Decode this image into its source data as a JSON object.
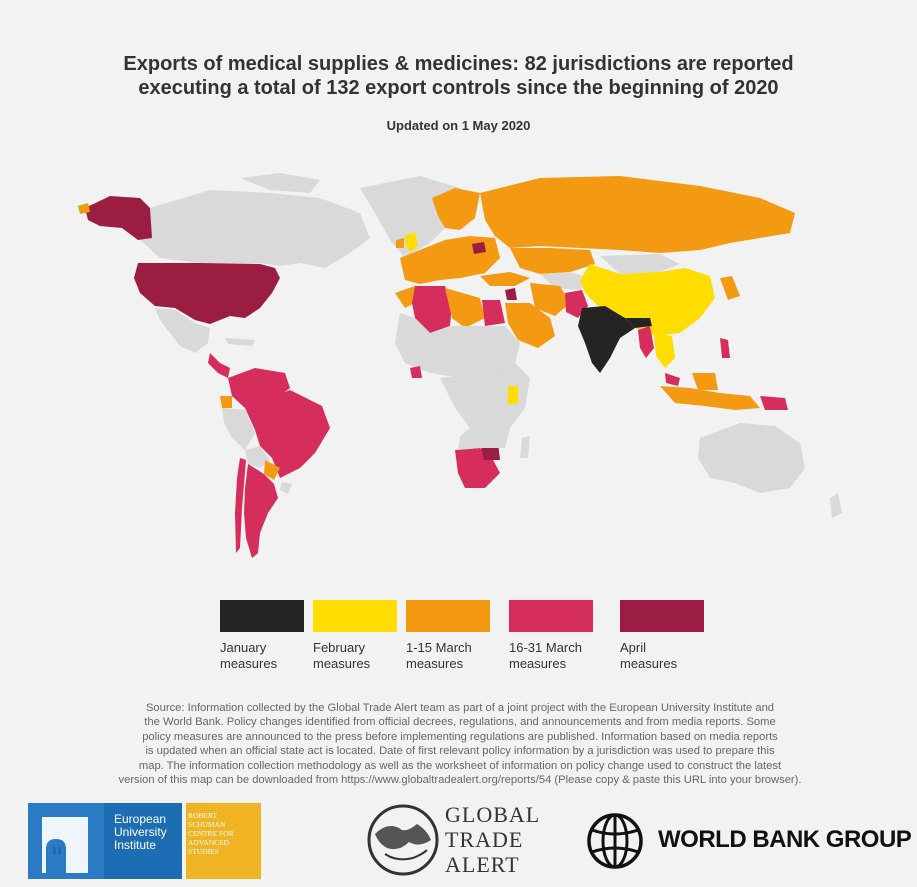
{
  "title": {
    "line1": "Exports of medical supplies & medicines: 82 jurisdictions are reported",
    "line2": "executing a total of 132 export controls since the beginning of 2020"
  },
  "subtitle": "Updated on 1 May 2020",
  "colors": {
    "background": "#f2f2f2",
    "no_data": "#d9d9d9",
    "january": "#242424",
    "february": "#ffd700",
    "march_1_15": "#f39c12",
    "march_16_31": "#d62e5c",
    "april": "#9b1d42"
  },
  "legend": [
    {
      "line1": "January",
      "line2": "measures",
      "color": "#242424"
    },
    {
      "line1": "February",
      "line2": "measures",
      "color": "#ffdd00"
    },
    {
      "line1": "1-15 March",
      "line2": "measures",
      "color": "#f49a12"
    },
    {
      "line1": "16-31 March",
      "line2": "measures",
      "color": "#d62e5c"
    },
    {
      "line1": "April",
      "line2": "measures",
      "color": "#9b1d42"
    }
  ],
  "source": {
    "line1": "Source: Information collected by the Global Trade Alert team as part of a joint project with the European University Institute and",
    "line2": "the World Bank. Policy changes identified from official decrees, regulations, and announcements and from media reports. Some",
    "line3": "policy measures are announced to the press before implementing regulations are published. Information based on media reports",
    "line4": "is updated when an official state act is located. Date of first relevant policy information by a jurisdiction was used to prepare this",
    "line5": "map. The information collection methodology as well as the worksheet of information on policy change used to construct the latest",
    "line6": "version of this map can be downloaded from https://www.globaltradealert.org/reports/54 (Please copy & paste this URL into your browser)."
  },
  "logos": {
    "eui": {
      "line1": "European",
      "line2": "University",
      "line3": "Institute",
      "color": "#1d6db5"
    },
    "rsc": {
      "line1": "ROBERT",
      "line2": "SCHUMAN",
      "line3": "CENTRE FOR",
      "line4": "ADVANCED",
      "line5": "STUDIES",
      "color": "#f0b323"
    },
    "gta": {
      "line1": "GLOBAL",
      "line2": "TRADE",
      "line3": "ALERT"
    },
    "wb": {
      "text": "WORLD BANK GROUP"
    }
  },
  "map_regions": {
    "april": [
      "United States",
      "Alaska",
      "Libya-East",
      "Zimbabwe",
      "Lesotho-region"
    ],
    "march_16_31": [
      "Mexico",
      "Central America",
      "Colombia",
      "Venezuela",
      "Ecuador",
      "Peru",
      "Brazil",
      "Bolivia",
      "Chile",
      "Argentina",
      "Algeria",
      "Egypt",
      "Ghana",
      "Namibia",
      "Botswana",
      "South Africa",
      "Pakistan",
      "Myanmar",
      "Philippines",
      "Malaysia",
      "Papua New Guinea"
    ],
    "march_1_15": [
      "Russia",
      "Europe",
      "Turkey",
      "Iran",
      "Saudi Arabia",
      "Kazakhstan",
      "Morocco",
      "Tunisia",
      "Libya",
      "Paraguay",
      "Ecuador-west",
      "Indonesia",
      "Thailand",
      "Kenya",
      "Greenland-none"
    ],
    "february": [
      "China",
      "Mongolia",
      "Kazakhstan-east",
      "Ukraine",
      "UK",
      "Taiwan",
      "Vietnam",
      "Kenya-coast"
    ],
    "january": [
      "India"
    ]
  }
}
